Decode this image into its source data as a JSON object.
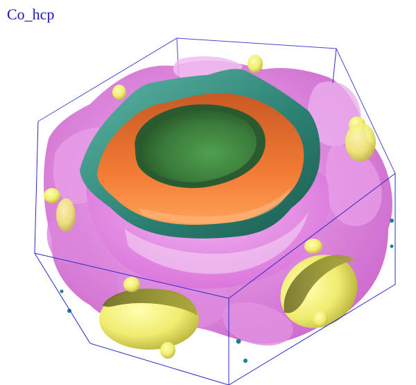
{
  "title": "Co_hcp",
  "colors": {
    "background": "#ffffff",
    "title": "#1a1ab0",
    "cell_edges": "#2828c8",
    "magenta_sheet": "#e67be6",
    "teal_sheet": "#2f8f80",
    "orange_sheet": "#f06a2a",
    "green_core": "#3a7a3a",
    "yellow_pockets": "#f3f07a",
    "small_beads": "#1b7f8f"
  }
}
